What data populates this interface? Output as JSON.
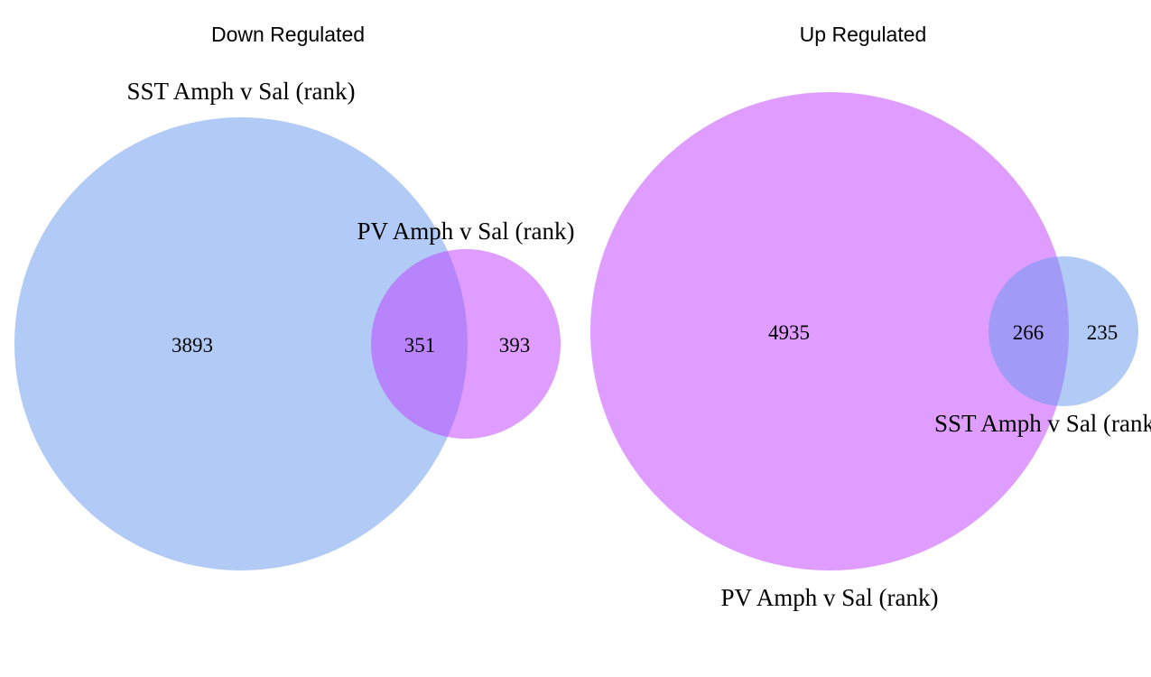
{
  "panels": {
    "down": {
      "title": "Down Regulated",
      "sets": {
        "sst": {
          "label": "SST Amph v Sal (rank)",
          "color": "#6495ED"
        },
        "pv": {
          "label": "PV Amph v Sal (rank)",
          "color": "#BF3EFF"
        }
      },
      "counts": {
        "sst_only": "3893",
        "both": "351",
        "pv_only": "393"
      }
    },
    "up": {
      "title": "Up Regulated",
      "sets": {
        "pv": {
          "label": "PV Amph v Sal (rank)",
          "color": "#BF3EFF"
        },
        "sst": {
          "label": "SST Amph v Sal (rank)",
          "color": "#6495ED"
        }
      },
      "counts": {
        "pv_only": "4935",
        "both": "266",
        "sst_only": "235"
      }
    }
  }
}
